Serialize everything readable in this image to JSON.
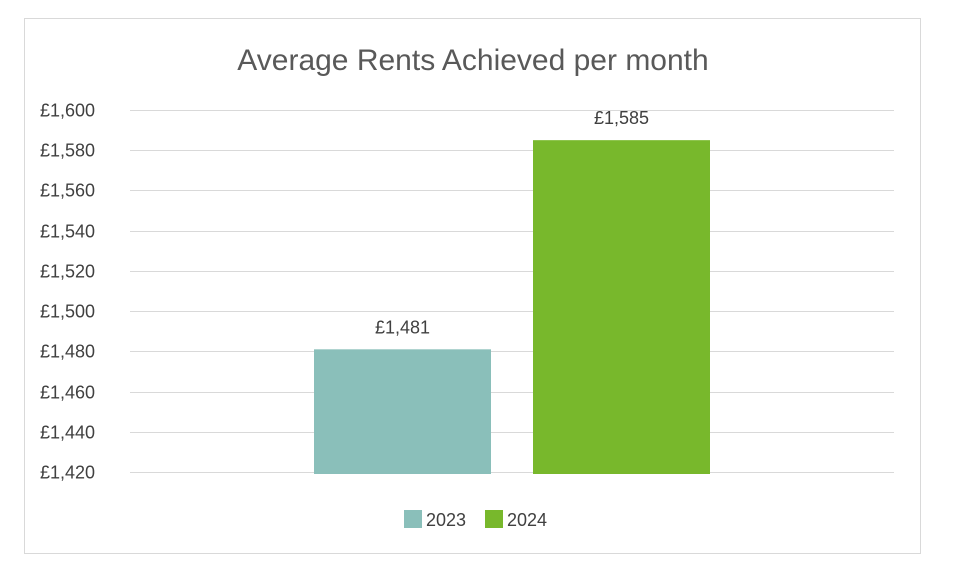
{
  "chart_data": {
    "type": "bar",
    "title": "Average Rents Achieved per month",
    "xlabel": "",
    "ylabel": "",
    "ylim": [
      1420,
      1600
    ],
    "y_ticks": [
      1420,
      1440,
      1460,
      1480,
      1500,
      1520,
      1540,
      1560,
      1580,
      1600
    ],
    "y_tick_labels": [
      "£1,420",
      "£1,440",
      "£1,460",
      "£1,480",
      "£1,500",
      "£1,520",
      "£1,540",
      "£1,560",
      "£1,580",
      "£1,600"
    ],
    "grid": true,
    "legend_position": "bottom",
    "series": [
      {
        "name": "2023",
        "values": [
          1481
        ],
        "data_label": "£1,481",
        "color": "#8abfba"
      },
      {
        "name": "2024",
        "values": [
          1585
        ],
        "data_label": "£1,585",
        "color": "#78b82c"
      }
    ]
  }
}
